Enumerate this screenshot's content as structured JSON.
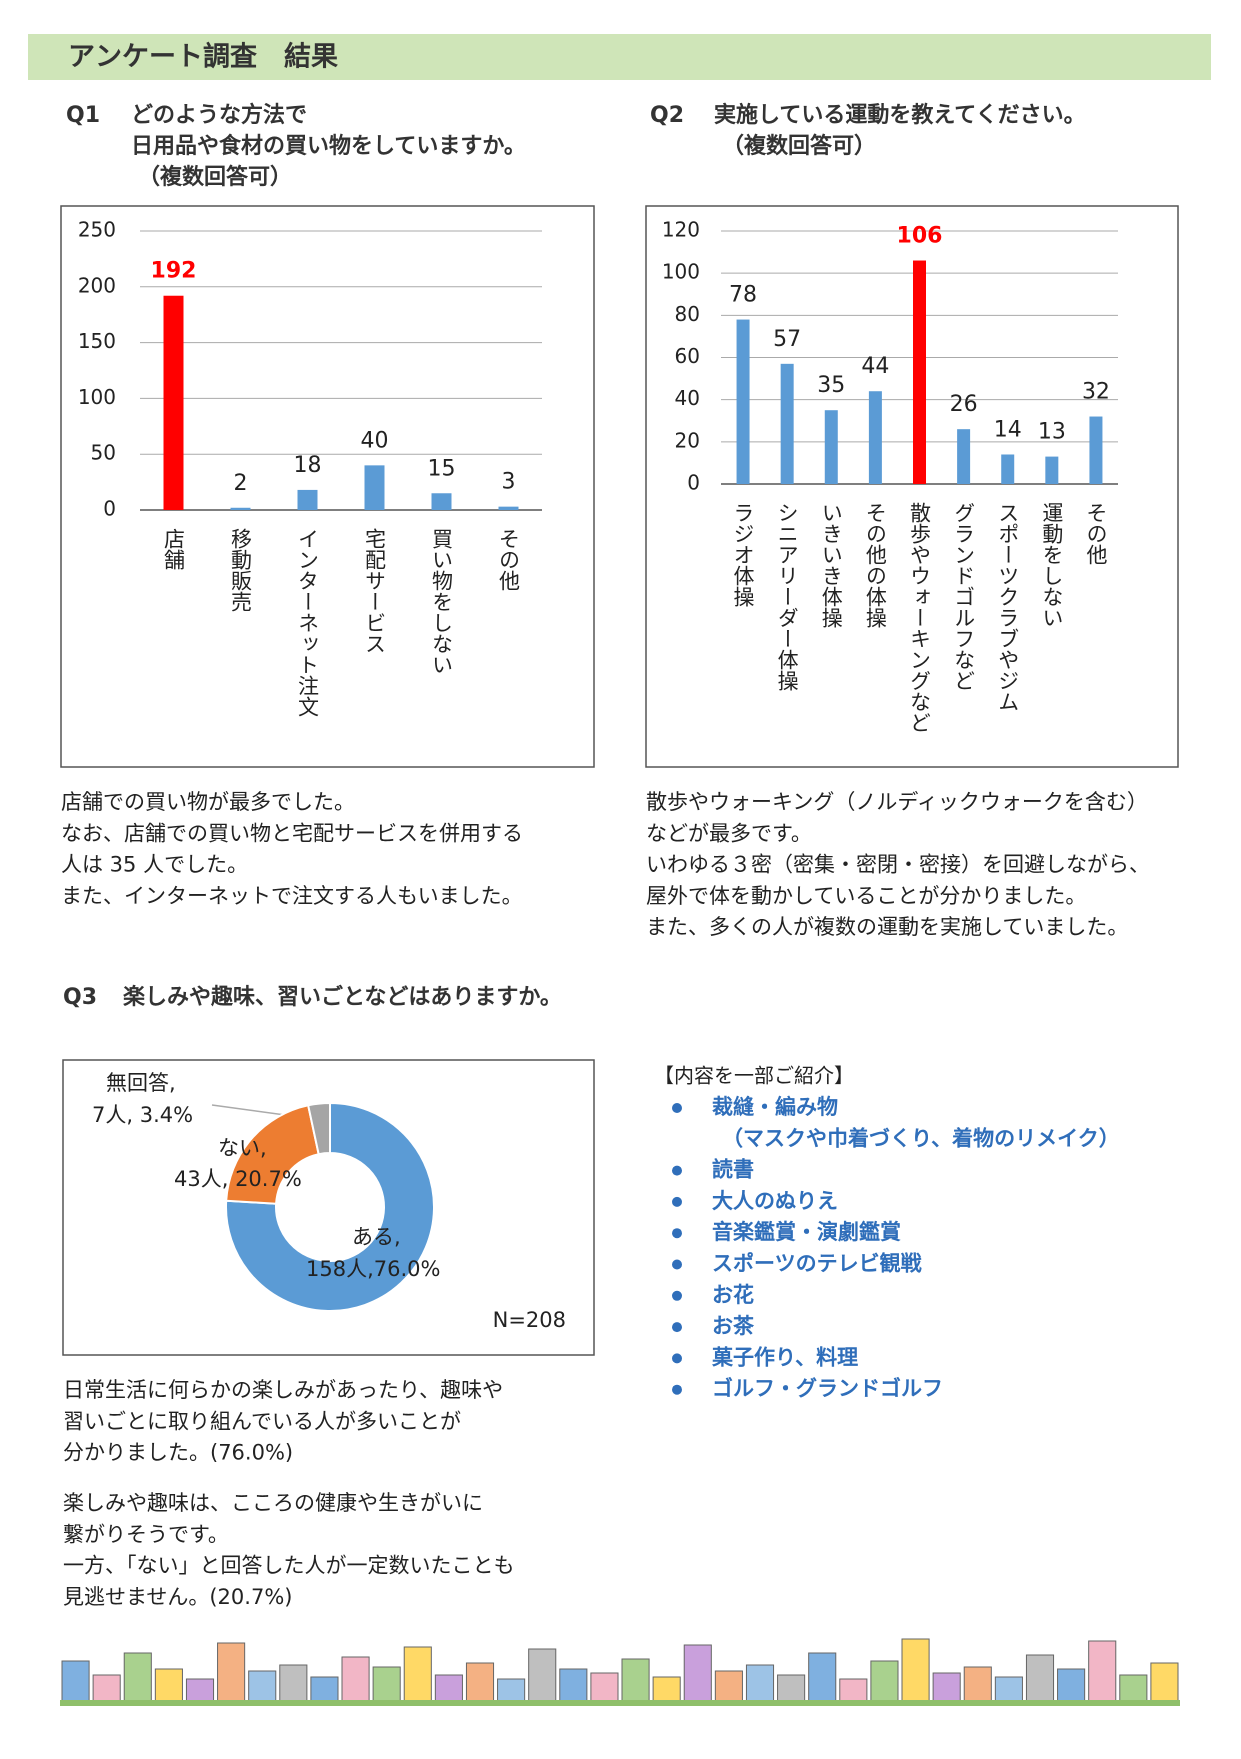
{
  "header": {
    "title": "アンケート調査　結果"
  },
  "q1": {
    "number": "Q1",
    "lines": [
      "どのような方法で",
      "日用品や食材の買い物をしていますか。",
      "（複数回答可）"
    ],
    "comment": [
      "店舗での買い物が最多でした。",
      "なお、店舗での買い物と宅配サービスを併用する",
      "人は 35 人でした。",
      "また、インターネットで注文する人もいました。"
    ]
  },
  "q2": {
    "number": "Q2",
    "lines": [
      "実施している運動を教えてください。",
      "（複数回答可）"
    ],
    "comment": [
      "散歩やウォーキング（ノルディックウォークを含む）",
      "などが最多です。",
      "いわゆる３密（密集・密閉・密接）を回避しながら、",
      "屋外で体を動かしていることが分かりました。",
      "また、多くの人が複数の運動を実施していました。"
    ]
  },
  "q3": {
    "number": "Q3",
    "lines": [
      "楽しみや趣味、習いごとなどはありますか。"
    ],
    "comment": [
      "日常生活に何らかの楽しみがあったり、趣味や",
      "習いごとに取り組んでいる人が多いことが",
      "分かりました。(76.0%)"
    ],
    "comment2": [
      "楽しみや趣味は、こころの健康や生きがいに",
      "繋がりそうです。",
      "一方、「ない」と回答した人が一定数いたことも",
      "見逃せません。(20.7%)"
    ]
  },
  "intro": {
    "heading": "【内容を一部ご紹介】",
    "items": [
      [
        "裁縫・編み物",
        "（マスクや巾着づくり、着物のリメイク）"
      ],
      [
        "読書"
      ],
      [
        "大人のぬりえ"
      ],
      [
        "音楽鑑賞・演劇鑑賞"
      ],
      [
        "スポーツのテレビ観戦"
      ],
      [
        "お花"
      ],
      [
        "お茶"
      ],
      [
        "菓子作り、料理"
      ],
      [
        "ゴルフ・グランドゴルフ"
      ]
    ]
  },
  "chart_data": [
    {
      "type": "bar",
      "categories": [
        "店舗",
        "移動販売",
        "インターネット注文",
        "宅配サービス",
        "買い物をしない",
        "その他"
      ],
      "values": [
        192,
        2,
        18,
        40,
        15,
        3
      ],
      "color": "#5b9bd5",
      "colors": [
        "#ff0000",
        "#5b9bd5",
        "#5b9bd5",
        "#5b9bd5",
        "#5b9bd5",
        "#5b9bd5"
      ],
      "ylim": [
        0,
        250
      ],
      "yticks": [
        0,
        50,
        100,
        150,
        200,
        250
      ],
      "grid": true
    },
    {
      "type": "bar",
      "categories": [
        "ラジオ体操",
        "シニアリーダー体操",
        "いきいき体操",
        "その他の体操",
        "散歩やウォーキングなど",
        "グランドゴルフなど",
        "スポーツクラブやジム",
        "運動をしない",
        "その他"
      ],
      "values": [
        78,
        57,
        35,
        44,
        106,
        26,
        14,
        13,
        32
      ],
      "color": "#5b9bd5",
      "colors": [
        "#5b9bd5",
        "#5b9bd5",
        "#5b9bd5",
        "#5b9bd5",
        "#ff0000",
        "#5b9bd5",
        "#5b9bd5",
        "#5b9bd5",
        "#5b9bd5"
      ],
      "ylim": [
        0,
        120
      ],
      "yticks": [
        0,
        20,
        40,
        60,
        80,
        100,
        120
      ],
      "grid": true
    },
    {
      "type": "donut",
      "categories": [
        "ある,",
        "ない,",
        "無回答,"
      ],
      "values": [
        158,
        43,
        7
      ],
      "value_labels": [
        "158人,76.0%",
        "43人, 20.7%",
        "7人, 3.4%"
      ],
      "colors": [
        "#5b9bd5",
        "#ed7d31",
        "#a5a5a5"
      ],
      "annotation": "N=208"
    }
  ]
}
